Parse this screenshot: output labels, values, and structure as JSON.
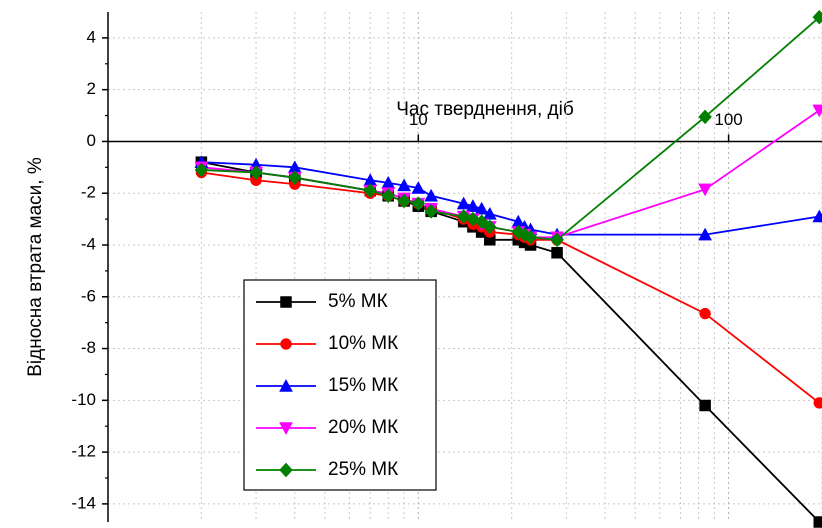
{
  "chart_data": {
    "type": "line",
    "xlabel": "Час тверднення, діб",
    "ylabel": "Відносна втрата маси, %",
    "x": [
      2,
      3,
      4,
      7,
      8,
      9,
      10,
      11,
      14,
      15,
      16,
      17,
      21,
      22,
      23,
      28,
      84,
      196
    ],
    "xscale": "log",
    "xlim": [
      1,
      200
    ],
    "xticks": [
      10,
      100
    ],
    "ylim": [
      -14.7,
      5
    ],
    "yticks": [
      4,
      2,
      0,
      -2,
      -4,
      -6,
      -8,
      -10,
      -12,
      -14
    ],
    "grid": true,
    "legend": "lower left",
    "series": [
      {
        "name": "5% МК",
        "color": "#000000",
        "marker": "square",
        "values": [
          -0.8,
          -1.2,
          -1.4,
          -1.9,
          -2.1,
          -2.3,
          -2.5,
          -2.7,
          -3.1,
          -3.3,
          -3.5,
          -3.8,
          -3.8,
          -3.9,
          -4.0,
          -4.3,
          -10.2,
          -14.7
        ]
      },
      {
        "name": "10% МК",
        "color": "#ff0000",
        "marker": "circle",
        "values": [
          -1.2,
          -1.5,
          -1.65,
          -2.0,
          -2.1,
          -2.3,
          -2.4,
          -2.6,
          -3.0,
          -3.2,
          -3.3,
          -3.5,
          -3.6,
          -3.7,
          -3.8,
          -3.8,
          -6.65,
          -10.1
        ]
      },
      {
        "name": "15% МК",
        "color": "#0000ff",
        "marker": "triangle-up",
        "values": [
          -0.8,
          -0.9,
          -1.0,
          -1.5,
          -1.6,
          -1.7,
          -1.8,
          -2.1,
          -2.4,
          -2.5,
          -2.6,
          -2.8,
          -3.1,
          -3.3,
          -3.4,
          -3.6,
          -3.6,
          -2.9
        ]
      },
      {
        "name": "20% МК",
        "color": "#ff00ff",
        "marker": "triangle-down",
        "values": [
          -1.0,
          -1.2,
          -1.4,
          -1.9,
          -2.0,
          -2.2,
          -2.4,
          -2.6,
          -2.9,
          -3.0,
          -3.2,
          -3.3,
          -3.5,
          -3.6,
          -3.7,
          -3.7,
          -1.85,
          1.2
        ]
      },
      {
        "name": "25% МК",
        "color": "#008000",
        "marker": "diamond",
        "values": [
          -1.1,
          -1.2,
          -1.4,
          -1.9,
          -2.1,
          -2.3,
          -2.4,
          -2.7,
          -2.9,
          -3.0,
          -3.1,
          -3.3,
          -3.5,
          -3.6,
          -3.7,
          -3.8,
          0.95,
          4.8
        ]
      }
    ]
  }
}
